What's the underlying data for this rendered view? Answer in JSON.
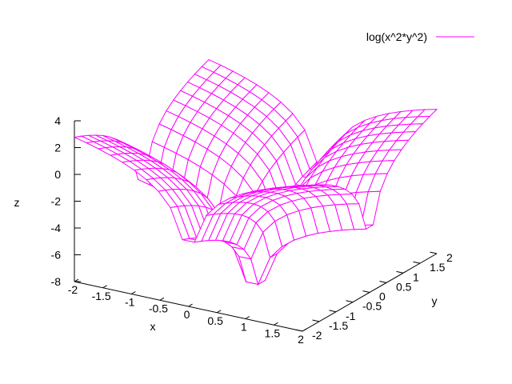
{
  "chart_data": {
    "type": "surface",
    "function": "log(x^2*y^2)",
    "legend": {
      "label": "log(x^2*y^2)",
      "placement": "top-right",
      "color": "#ff00ff"
    },
    "xlabel": "x",
    "ylabel": "y",
    "zlabel": "z",
    "xlim": [
      -2,
      2
    ],
    "ylim": [
      -2,
      2
    ],
    "zlim": [
      -8,
      4
    ],
    "x_ticks": [
      "-2",
      "-1.5",
      "-1",
      "-0.5",
      "0",
      "0.5",
      "1",
      "1.5",
      "2"
    ],
    "y_ticks": [
      "-2",
      "-1.5",
      "-1",
      "-0.5",
      "0",
      "0.5",
      "1",
      "1.5",
      "2"
    ],
    "z_ticks": [
      "-8",
      "-6",
      "-4",
      "-2",
      "0",
      "2",
      "4"
    ],
    "grid_samples": 20,
    "line_color": "#ff00ff",
    "axis_color": "#000000"
  }
}
